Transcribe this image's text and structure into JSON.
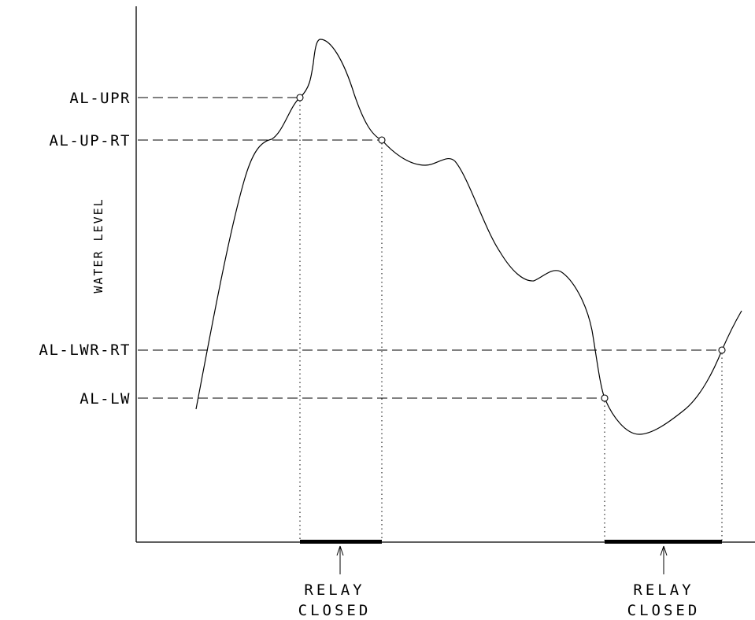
{
  "y_axis_label": "WATER LEVEL",
  "thresholds": [
    {
      "id": "al-upr",
      "label": "AL-UPR"
    },
    {
      "id": "al-up-rt",
      "label": "AL-UP-RT"
    },
    {
      "id": "al-lwr-rt",
      "label": "AL-LWR-RT"
    },
    {
      "id": "al-lw",
      "label": "AL-LW"
    }
  ],
  "relay_markers": [
    {
      "line1": "RELAY",
      "line2": "CLOSED"
    },
    {
      "line1": "RELAY",
      "line2": "CLOSED"
    }
  ]
}
